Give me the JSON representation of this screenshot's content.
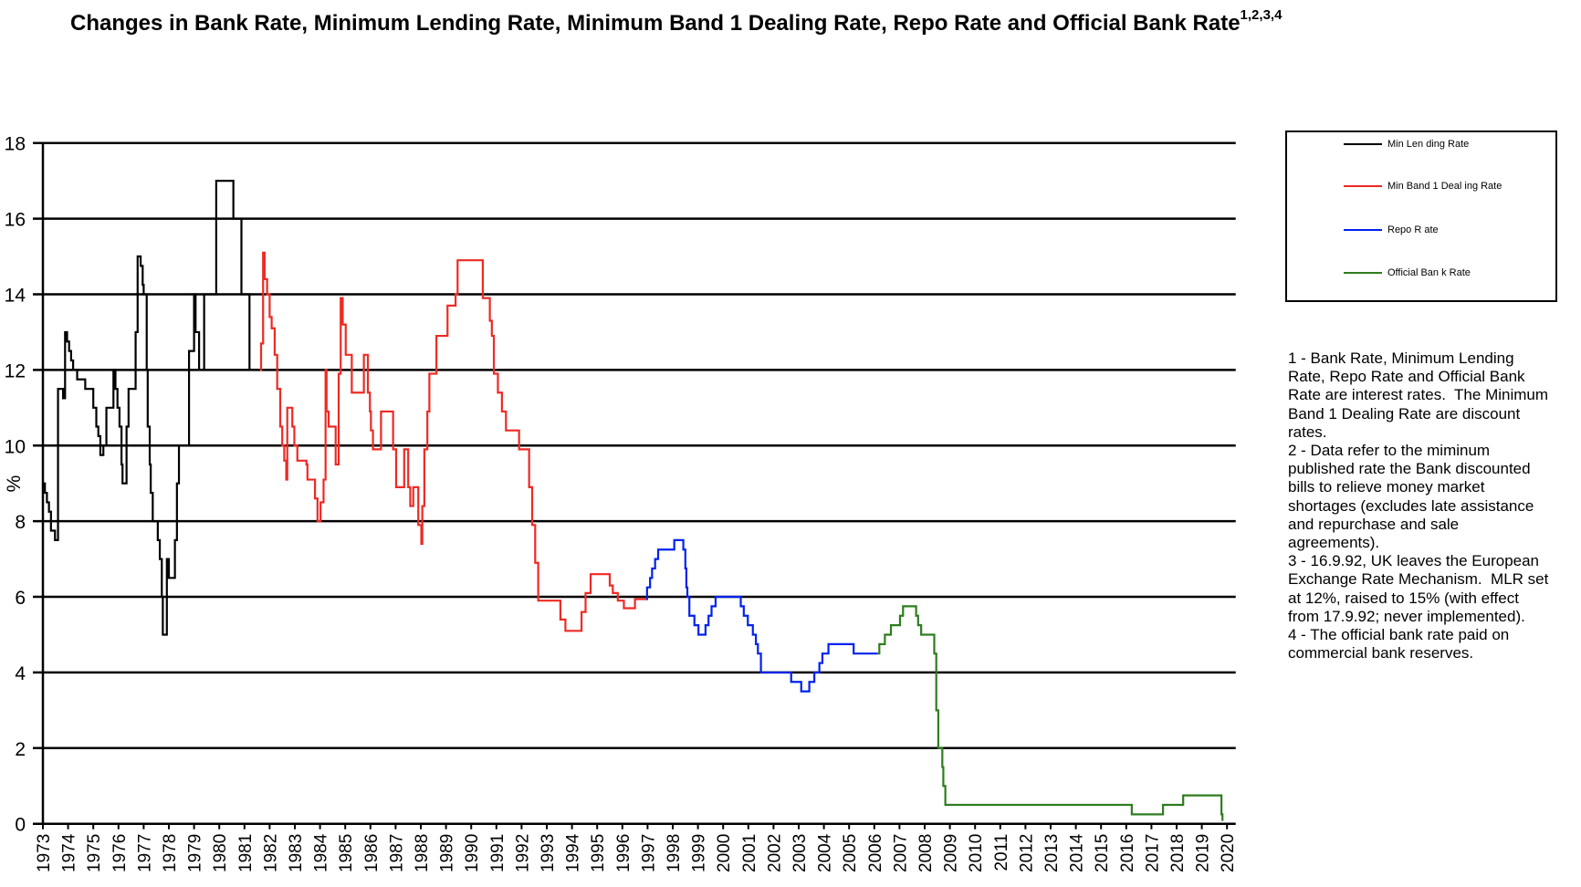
{
  "title": "Changes in Bank Rate, Minimum Lending Rate, Minimum Band 1 Dealing Rate, Repo Rate and Official Bank Rate",
  "title_superscript": "1,2,3,4",
  "legend": [
    {
      "label": "Min Len ding Rate",
      "color": "#000000"
    },
    {
      "label": "Min Band  1 Deal ing Rate",
      "color": "#ee2a24"
    },
    {
      "label": "Repo R ate",
      "color": "#0022ee"
    },
    {
      "label": "Official Ban k Rate",
      "color": "#2e7d1f"
    }
  ],
  "notes": [
    "1 - Bank Rate, Minimum Lending",
    "Rate, Repo Rate and Official Bank",
    "Rate are interest rates.  The Minimum",
    "Band 1 Dealing Rate are discount",
    "rates.",
    "2 - Data refer to the miminum",
    "published rate the Bank discounted",
    "bills to relieve money market",
    "shortages (excludes late assistance",
    "and repurchase and sale",
    "agreements).",
    "3 - 16.9.92, UK leaves the European",
    "Exchange Rate Mechanism.  MLR set",
    "at 12%, raised to 15% (with effect",
    "from 17.9.92; never implemented).",
    "4 - The official bank rate paid on",
    "commercial bank reserves."
  ],
  "chart_data": {
    "type": "line",
    "step": true,
    "ylabel": "%",
    "xlabel": "",
    "ylim": [
      0,
      18
    ],
    "yticks": [
      "0",
      "2",
      "4",
      "6",
      "8",
      "10",
      "12",
      "14",
      "16",
      "18"
    ],
    "xlim": [
      1973,
      2020.2
    ],
    "xticks": [
      "1973",
      "1974",
      "1975",
      "1976",
      "1977",
      "1978",
      "1979",
      "1980",
      "1981",
      "1982",
      "1983",
      "1984",
      "1985",
      "1986",
      "1987",
      "1988",
      "1989",
      "1990",
      "1991",
      "1992",
      "1993",
      "1994",
      "1995",
      "1996",
      "1997",
      "1998",
      "1999",
      "2000",
      "2001",
      "2002",
      "2003",
      "2004",
      "2005",
      "2006",
      "2007",
      "2008",
      "2009",
      "2010",
      "2011",
      "2012",
      "2013",
      "2014",
      "2015",
      "2016",
      "2017",
      "2018",
      "2019",
      "2020"
    ],
    "grid": "horizontal",
    "legend_position": "right",
    "series": [
      {
        "name": "Min Lending Rate",
        "color": "#000000",
        "points": [
          [
            1973.0,
            9
          ],
          [
            1973.08,
            8.75
          ],
          [
            1973.16,
            8.5
          ],
          [
            1973.24,
            8.25
          ],
          [
            1973.32,
            7.75
          ],
          [
            1973.48,
            7.5
          ],
          [
            1973.6,
            11.5
          ],
          [
            1973.8,
            11.25
          ],
          [
            1973.88,
            13
          ],
          [
            1973.96,
            12.75
          ],
          [
            1974.04,
            12.5
          ],
          [
            1974.12,
            12.25
          ],
          [
            1974.2,
            12
          ],
          [
            1974.36,
            11.75
          ],
          [
            1974.68,
            11.5
          ],
          [
            1975.0,
            11
          ],
          [
            1975.12,
            10.5
          ],
          [
            1975.2,
            10.25
          ],
          [
            1975.28,
            9.75
          ],
          [
            1975.4,
            10
          ],
          [
            1975.52,
            11
          ],
          [
            1975.8,
            12
          ],
          [
            1975.88,
            11.5
          ],
          [
            1975.96,
            11
          ],
          [
            1976.04,
            10.5
          ],
          [
            1976.12,
            9.5
          ],
          [
            1976.16,
            9
          ],
          [
            1976.32,
            10.5
          ],
          [
            1976.4,
            11.5
          ],
          [
            1976.68,
            13
          ],
          [
            1976.76,
            15
          ],
          [
            1976.88,
            14.75
          ],
          [
            1976.96,
            14.25
          ],
          [
            1977.0,
            14
          ],
          [
            1977.12,
            12
          ],
          [
            1977.16,
            10.5
          ],
          [
            1977.24,
            9.5
          ],
          [
            1977.28,
            8.75
          ],
          [
            1977.36,
            8
          ],
          [
            1977.56,
            7.5
          ],
          [
            1977.64,
            7
          ],
          [
            1977.72,
            6
          ],
          [
            1977.76,
            5
          ],
          [
            1977.92,
            7
          ],
          [
            1978.0,
            6.5
          ],
          [
            1978.24,
            7.5
          ],
          [
            1978.32,
            9
          ],
          [
            1978.4,
            10
          ],
          [
            1978.8,
            12.5
          ],
          [
            1979.0,
            14
          ],
          [
            1979.06,
            13
          ],
          [
            1979.2,
            12
          ],
          [
            1979.4,
            14
          ],
          [
            1979.88,
            17
          ],
          [
            1980.56,
            16
          ],
          [
            1980.88,
            14
          ],
          [
            1981.2,
            12
          ]
        ]
      },
      {
        "name": "Min Band 1 Dealing Rate",
        "color": "#ee2a24",
        "points": [
          [
            1981.62,
            12
          ],
          [
            1981.66,
            12.7
          ],
          [
            1981.74,
            15.1
          ],
          [
            1981.8,
            14.4
          ],
          [
            1981.9,
            14
          ],
          [
            1982.0,
            13.4
          ],
          [
            1982.08,
            13.1
          ],
          [
            1982.2,
            12.4
          ],
          [
            1982.3,
            11.5
          ],
          [
            1982.42,
            10.5
          ],
          [
            1982.5,
            10
          ],
          [
            1982.58,
            9.6
          ],
          [
            1982.66,
            9.1
          ],
          [
            1982.7,
            11
          ],
          [
            1982.9,
            10.5
          ],
          [
            1982.98,
            10
          ],
          [
            1983.1,
            9.6
          ],
          [
            1983.46,
            9.5
          ],
          [
            1983.5,
            9.1
          ],
          [
            1983.8,
            8.6
          ],
          [
            1983.9,
            8
          ],
          [
            1984.02,
            8.5
          ],
          [
            1984.14,
            9.1
          ],
          [
            1984.22,
            12
          ],
          [
            1984.26,
            10.9
          ],
          [
            1984.34,
            10.5
          ],
          [
            1984.62,
            9.5
          ],
          [
            1984.74,
            11.9
          ],
          [
            1984.82,
            13.9
          ],
          [
            1984.9,
            13.2
          ],
          [
            1985.02,
            12.4
          ],
          [
            1985.26,
            11.4
          ],
          [
            1985.74,
            12.4
          ],
          [
            1985.9,
            11.4
          ],
          [
            1985.98,
            10.9
          ],
          [
            1986.02,
            10.4
          ],
          [
            1986.1,
            9.9
          ],
          [
            1986.42,
            10.9
          ],
          [
            1986.9,
            9.9
          ],
          [
            1987.02,
            8.9
          ],
          [
            1987.34,
            9.9
          ],
          [
            1987.5,
            8.9
          ],
          [
            1987.58,
            8.4
          ],
          [
            1987.7,
            8.9
          ],
          [
            1987.9,
            7.9
          ],
          [
            1988.02,
            7.4
          ],
          [
            1988.06,
            8.4
          ],
          [
            1988.14,
            9.9
          ],
          [
            1988.26,
            10.9
          ],
          [
            1988.34,
            11.9
          ],
          [
            1988.62,
            12.9
          ],
          [
            1989.06,
            13.7
          ],
          [
            1989.38,
            14
          ],
          [
            1989.46,
            14.9
          ],
          [
            1990.46,
            13.9
          ],
          [
            1990.74,
            13.3
          ],
          [
            1990.82,
            12.9
          ],
          [
            1990.9,
            11.9
          ],
          [
            1991.06,
            11.4
          ],
          [
            1991.22,
            10.9
          ],
          [
            1991.38,
            10.4
          ],
          [
            1991.9,
            9.9
          ],
          [
            1992.3,
            8.9
          ],
          [
            1992.42,
            7.9
          ],
          [
            1992.54,
            6.9
          ],
          [
            1992.66,
            5.9
          ],
          [
            1993.54,
            5.4
          ],
          [
            1993.74,
            5.1
          ],
          [
            1994.38,
            5.6
          ],
          [
            1994.54,
            6.1
          ],
          [
            1994.74,
            6.6
          ],
          [
            1995.5,
            6.3
          ],
          [
            1995.62,
            6.1
          ],
          [
            1995.82,
            5.9
          ],
          [
            1996.06,
            5.7
          ],
          [
            1996.5,
            5.94
          ]
        ]
      },
      {
        "name": "Repo Rate",
        "color": "#0022ee",
        "points": [
          [
            1996.94,
            5.94
          ],
          [
            1996.98,
            6.25
          ],
          [
            1997.1,
            6.5
          ],
          [
            1997.18,
            6.75
          ],
          [
            1997.3,
            7
          ],
          [
            1997.42,
            7.25
          ],
          [
            1998.06,
            7.5
          ],
          [
            1998.42,
            7.25
          ],
          [
            1998.5,
            6.75
          ],
          [
            1998.54,
            6.25
          ],
          [
            1998.58,
            6
          ],
          [
            1998.66,
            5.5
          ],
          [
            1998.86,
            5.25
          ],
          [
            1999.02,
            5
          ],
          [
            1999.3,
            5.25
          ],
          [
            1999.42,
            5.5
          ],
          [
            1999.54,
            5.75
          ],
          [
            1999.7,
            6
          ],
          [
            2000.7,
            5.75
          ],
          [
            2000.82,
            5.5
          ],
          [
            2000.98,
            5.25
          ],
          [
            2001.18,
            5
          ],
          [
            2001.3,
            4.75
          ],
          [
            2001.38,
            4.5
          ],
          [
            2001.5,
            4
          ],
          [
            2002.7,
            3.75
          ],
          [
            2003.1,
            3.5
          ],
          [
            2003.42,
            3.75
          ],
          [
            2003.62,
            4
          ],
          [
            2003.82,
            4.25
          ],
          [
            2003.94,
            4.5
          ],
          [
            2004.18,
            4.75
          ],
          [
            2005.18,
            4.5
          ]
        ]
      },
      {
        "name": "Official Bank Rate",
        "color": "#2e7d1f",
        "points": [
          [
            2006.14,
            4.5
          ],
          [
            2006.2,
            4.75
          ],
          [
            2006.42,
            5
          ],
          [
            2006.66,
            5.25
          ],
          [
            2007.02,
            5.5
          ],
          [
            2007.14,
            5.75
          ],
          [
            2007.66,
            5.5
          ],
          [
            2007.74,
            5.25
          ],
          [
            2007.86,
            5
          ],
          [
            2008.38,
            4.5
          ],
          [
            2008.46,
            3
          ],
          [
            2008.54,
            2
          ],
          [
            2008.7,
            1.5
          ],
          [
            2008.74,
            1
          ],
          [
            2008.82,
            0.5
          ],
          [
            2016.22,
            0.25
          ],
          [
            2017.46,
            0.5
          ],
          [
            2018.26,
            0.75
          ],
          [
            2019.78,
            0.25
          ],
          [
            2019.82,
            0.1
          ]
        ]
      }
    ]
  }
}
